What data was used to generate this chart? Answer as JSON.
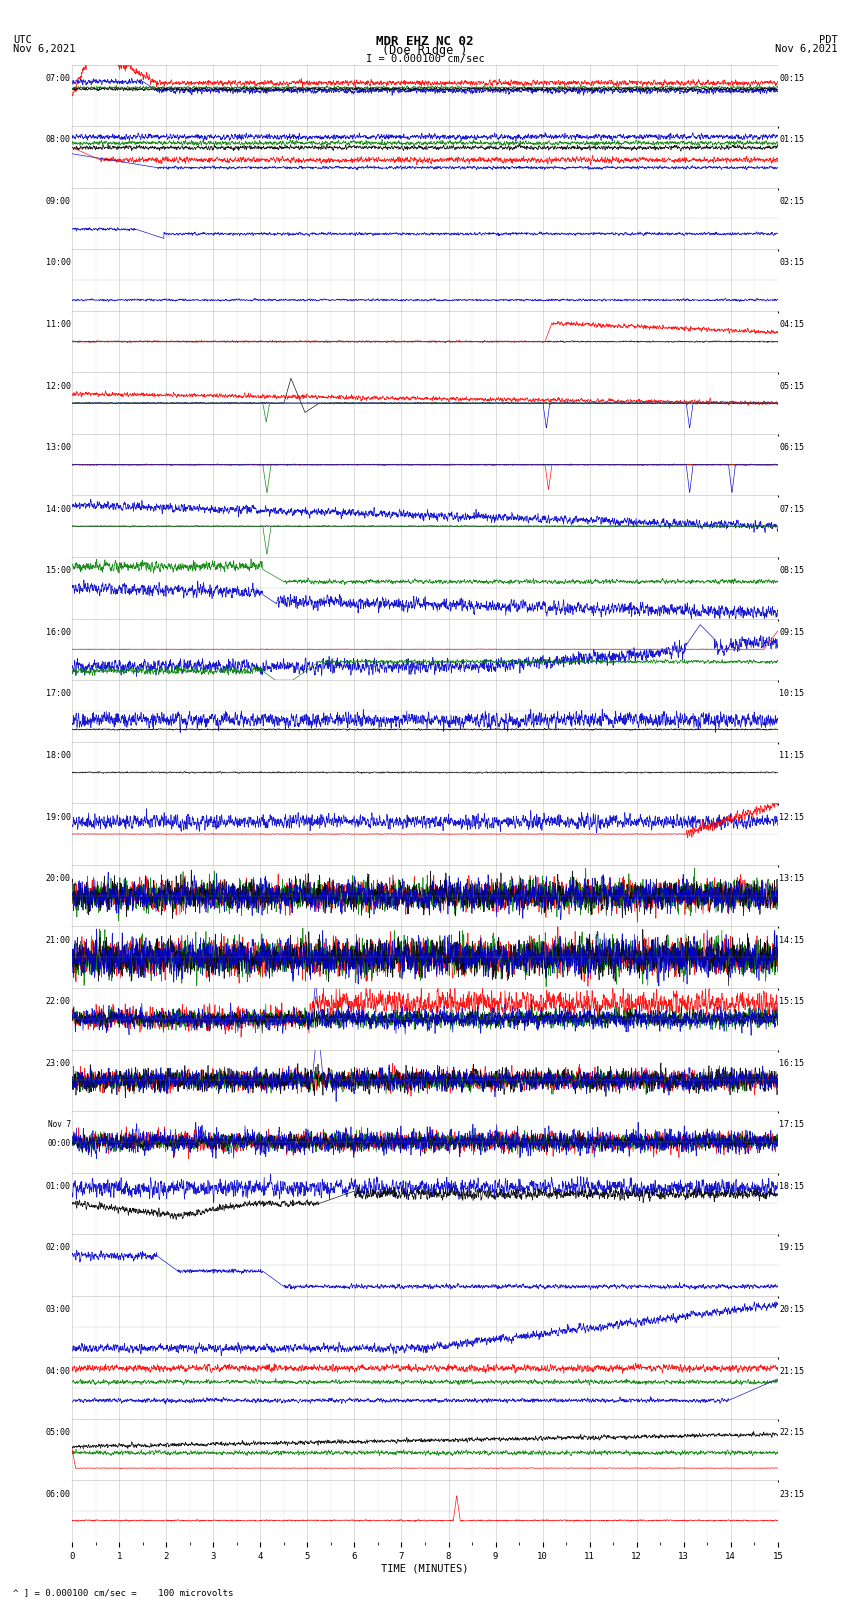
{
  "title_line1": "MDR EHZ NC 02",
  "title_line2": "(Doe Ridge )",
  "scale_text": "I = 0.000100 cm/sec",
  "utc_label": "UTC",
  "utc_date": "Nov 6,2021",
  "pdt_label": "PDT",
  "pdt_date": "Nov 6,2021",
  "xlabel": "TIME (MINUTES)",
  "footer_text": "^ ] = 0.000100 cm/sec =    100 microvolts",
  "xlim": [
    0,
    15
  ],
  "num_rows": 24,
  "fig_width": 8.5,
  "fig_height": 16.13,
  "dpi": 100,
  "bg_color": "#ffffff",
  "grid_color": "#999999",
  "trace_colors": [
    "#ff0000",
    "#008000",
    "#000000",
    "#0000cc"
  ],
  "left_times": [
    "07:00",
    "08:00",
    "09:00",
    "10:00",
    "11:00",
    "12:00",
    "13:00",
    "14:00",
    "15:00",
    "16:00",
    "17:00",
    "18:00",
    "19:00",
    "20:00",
    "21:00",
    "22:00",
    "23:00",
    "Nov 7\n00:00",
    "01:00",
    "02:00",
    "03:00",
    "04:00",
    "05:00",
    "06:00"
  ],
  "right_times": [
    "00:15",
    "01:15",
    "02:15",
    "03:15",
    "04:15",
    "05:15",
    "06:15",
    "07:15",
    "08:15",
    "09:15",
    "10:15",
    "11:15",
    "12:15",
    "13:15",
    "14:15",
    "15:15",
    "16:15",
    "17:15",
    "18:15",
    "19:15",
    "20:15",
    "21:15",
    "22:15",
    "23:15"
  ]
}
